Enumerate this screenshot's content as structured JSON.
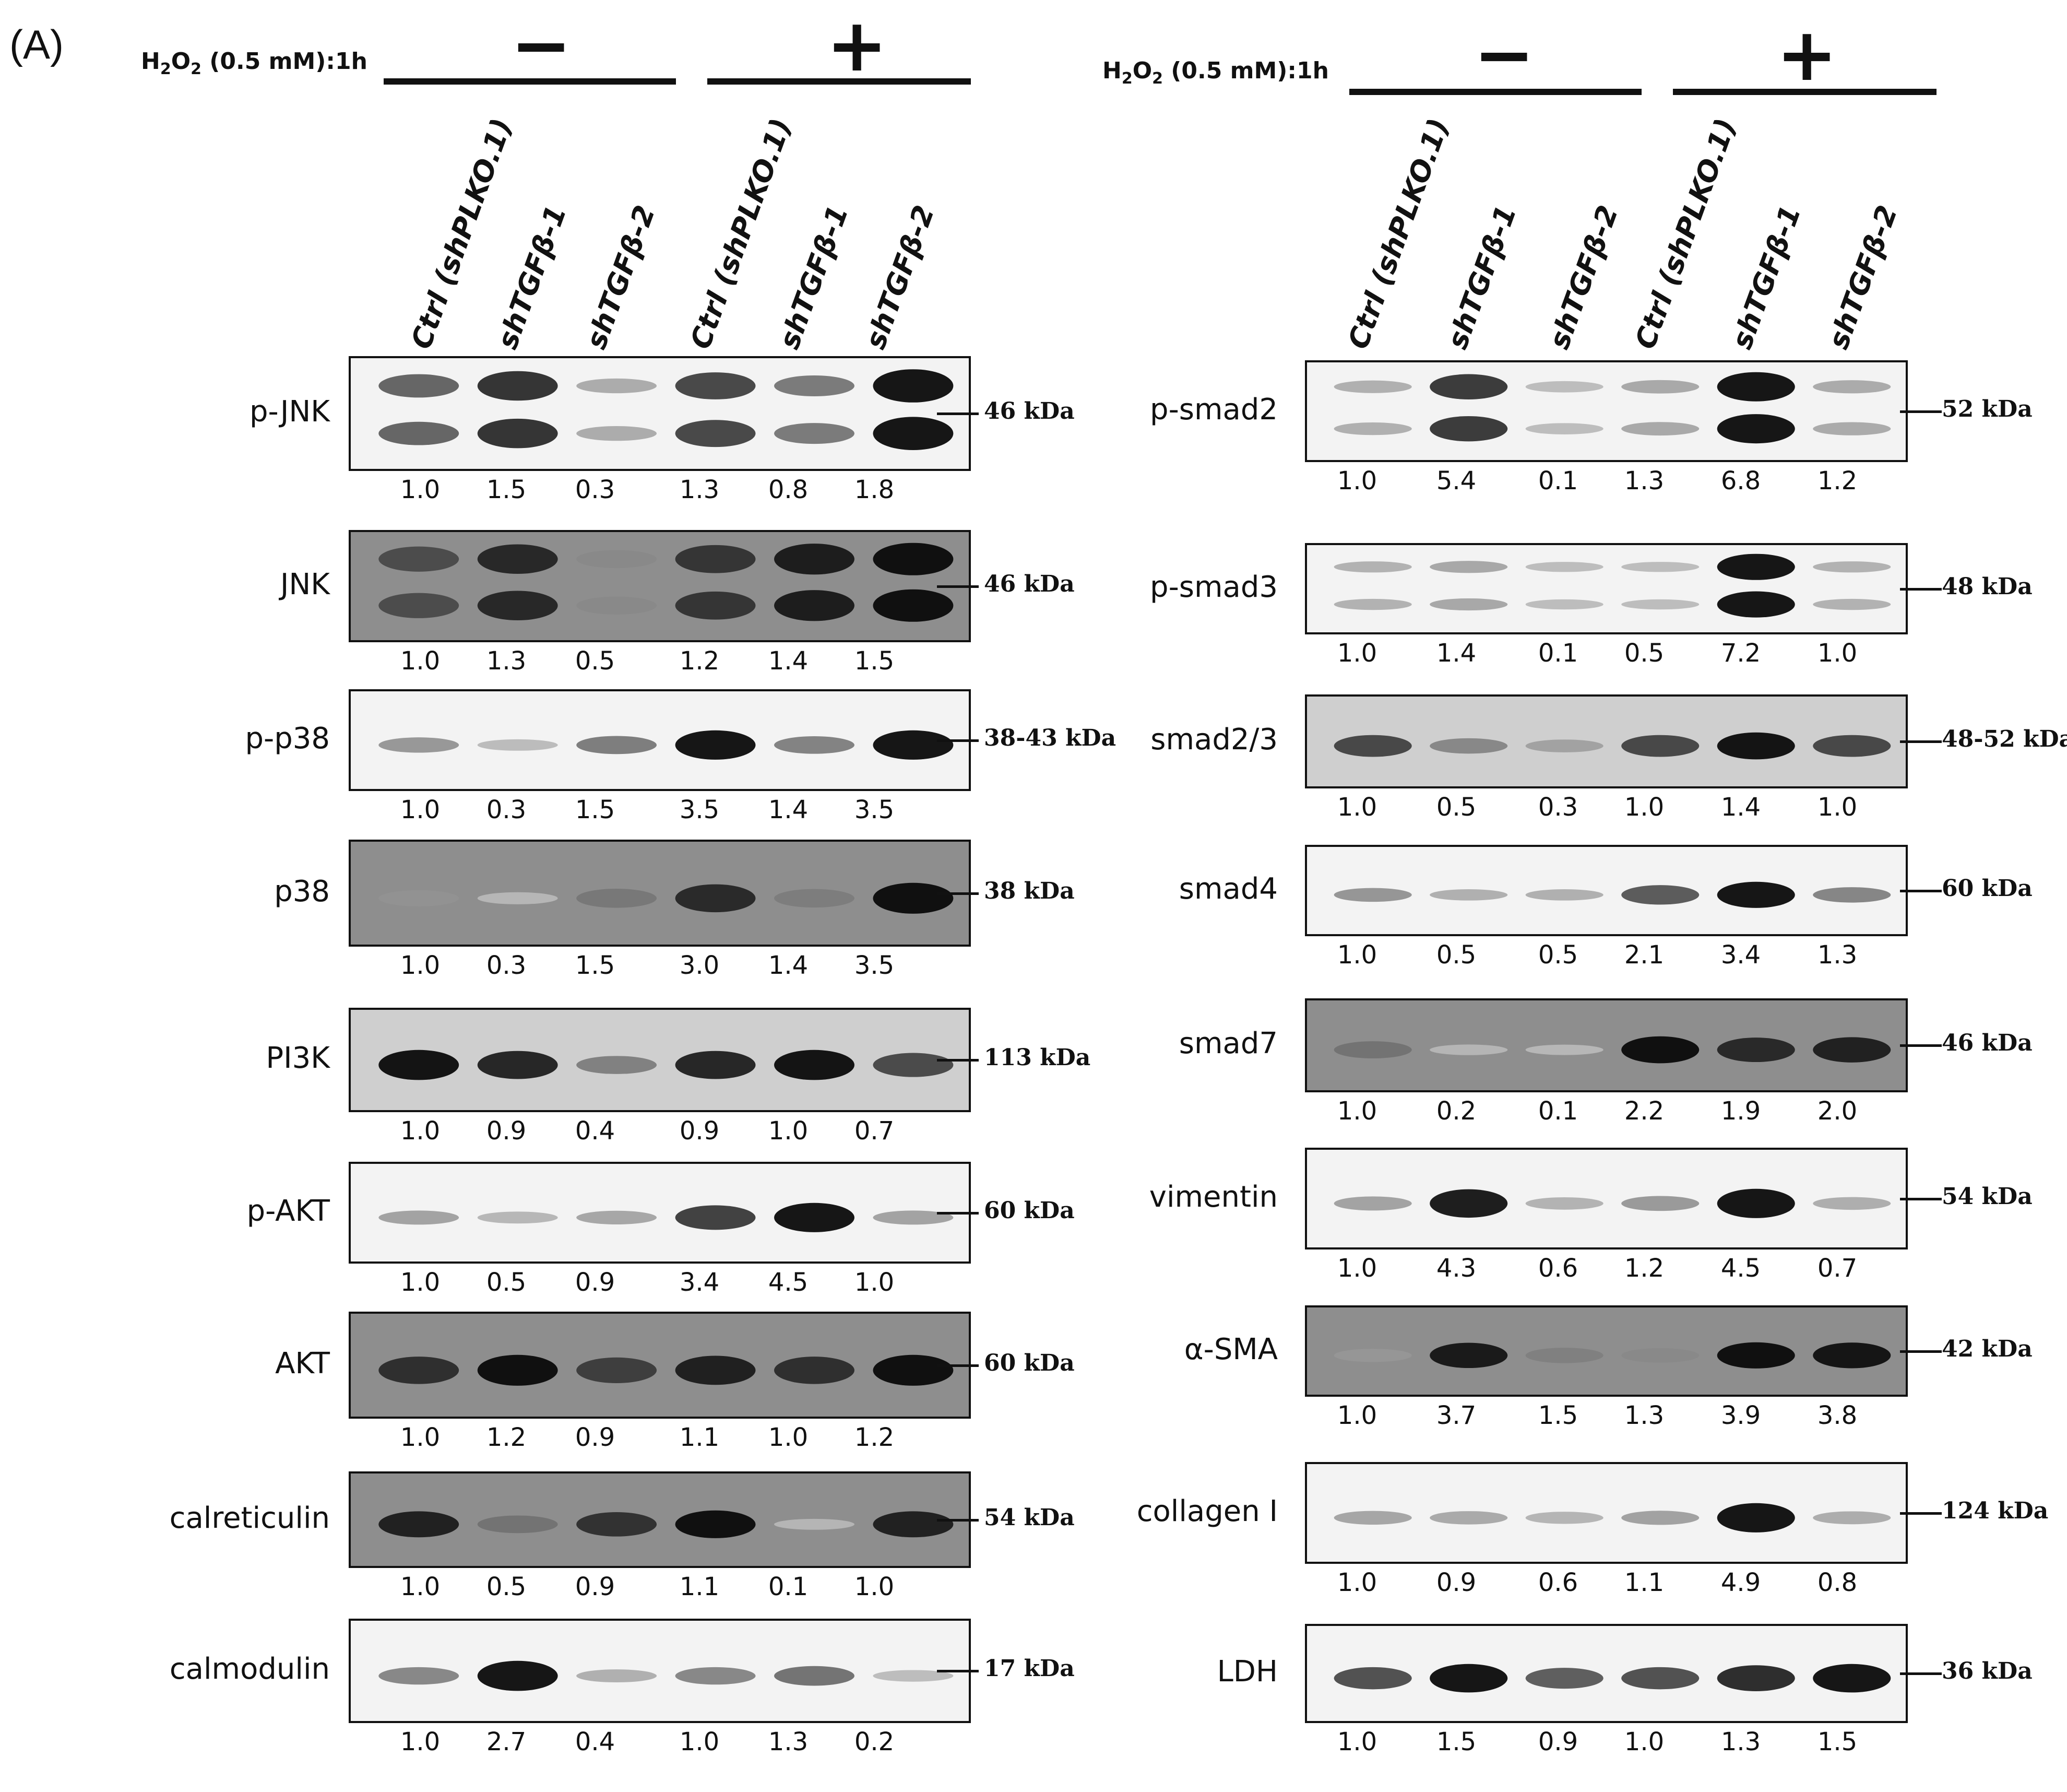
{
  "panel_label": "(A)",
  "treatment": {
    "label_main": "H",
    "label_sub1": "2",
    "label_mid": "O",
    "label_sub2": "2",
    "label_rest": " (0.5 mM):1h",
    "minus": "−",
    "plus": "+"
  },
  "lanes": [
    "Ctrl (shPLKO.1)",
    "shTGFβ-1",
    "shTGFβ-2",
    "Ctrl (shPLKO.1)",
    "shTGFβ-1",
    "shTGFβ-2"
  ],
  "left_blots": [
    {
      "protein": "p-JNK",
      "kda": "46 kDa",
      "values": [
        "1.0",
        "1.5",
        "0.3",
        "1.3",
        "0.8",
        "1.8"
      ]
    },
    {
      "protein": "JNK",
      "kda": "46 kDa",
      "values": [
        "1.0",
        "1.3",
        "0.5",
        "1.2",
        "1.4",
        "1.5"
      ]
    },
    {
      "protein": "p-p38",
      "kda": "38-43 kDa",
      "values": [
        "1.0",
        "0.3",
        "1.5",
        "3.5",
        "1.4",
        "3.5"
      ]
    },
    {
      "protein": "p38",
      "kda": "38 kDa",
      "values": [
        "1.0",
        "0.3",
        "1.5",
        "3.0",
        "1.4",
        "3.5"
      ]
    },
    {
      "protein": "PI3K",
      "kda": "113 kDa",
      "values": [
        "1.0",
        "0.9",
        "0.4",
        "0.9",
        "1.0",
        "0.7"
      ]
    },
    {
      "protein": "p-AKT",
      "kda": "60 kDa",
      "values": [
        "1.0",
        "0.5",
        "0.9",
        "3.4",
        "4.5",
        "1.0"
      ]
    },
    {
      "protein": "AKT",
      "kda": "60 kDa",
      "values": [
        "1.0",
        "1.2",
        "0.9",
        "1.1",
        "1.0",
        "1.2"
      ]
    },
    {
      "protein": "calreticulin",
      "kda": "54 kDa",
      "values": [
        "1.0",
        "0.5",
        "0.9",
        "1.1",
        "0.1",
        "1.0"
      ]
    },
    {
      "protein": "calmodulin",
      "kda": "17 kDa",
      "values": [
        "1.0",
        "2.7",
        "0.4",
        "1.0",
        "1.3",
        "0.2"
      ]
    }
  ],
  "right_blots": [
    {
      "protein": "p-smad2",
      "kda": "52 kDa",
      "values": [
        "1.0",
        "5.4",
        "0.1",
        "1.3",
        "6.8",
        "1.2"
      ]
    },
    {
      "protein": "p-smad3",
      "kda": "48 kDa",
      "values": [
        "1.0",
        "1.4",
        "0.1",
        "0.5",
        "7.2",
        "1.0"
      ]
    },
    {
      "protein": "smad2/3",
      "kda": "48-52 kDa",
      "values": [
        "1.0",
        "0.5",
        "0.3",
        "1.0",
        "1.4",
        "1.0"
      ]
    },
    {
      "protein": "smad4",
      "kda": "60 kDa",
      "values": [
        "1.0",
        "0.5",
        "0.5",
        "2.1",
        "3.4",
        "1.3"
      ]
    },
    {
      "protein": "smad7",
      "kda": "46 kDa",
      "values": [
        "1.0",
        "0.2",
        "0.1",
        "2.2",
        "1.9",
        "2.0"
      ]
    },
    {
      "protein": "vimentin",
      "kda": "54 kDa",
      "values": [
        "1.0",
        "4.3",
        "0.6",
        "1.2",
        "4.5",
        "0.7"
      ]
    },
    {
      "protein": "α-SMA",
      "kda": "42 kDa",
      "values": [
        "1.0",
        "3.7",
        "1.5",
        "1.3",
        "3.9",
        "3.8"
      ]
    },
    {
      "protein": "collagen I",
      "kda": "124 kDa",
      "values": [
        "1.0",
        "0.9",
        "0.6",
        "1.1",
        "4.9",
        "0.8"
      ]
    },
    {
      "protein": "LDH",
      "kda": "36 kDa",
      "values": [
        "1.0",
        "1.5",
        "0.9",
        "1.0",
        "1.3",
        "1.5"
      ]
    }
  ]
}
